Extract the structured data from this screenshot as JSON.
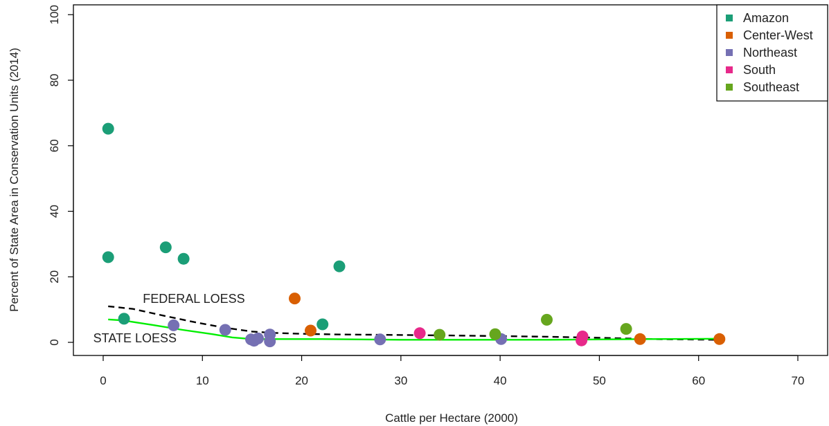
{
  "chart_data": {
    "type": "scatter",
    "xlabel": "Cattle per Hectare (2000)",
    "ylabel": "Percent of State Area in Conservation Units (2014)",
    "xlim": [
      -3,
      73
    ],
    "ylim": [
      -4,
      103
    ],
    "xticks": [
      0,
      10,
      20,
      30,
      40,
      50,
      60,
      70
    ],
    "yticks": [
      0,
      20,
      40,
      60,
      80,
      100
    ],
    "legend_position": "top-right",
    "series": [
      {
        "name": "Amazon",
        "color": "#1b9e77",
        "points": [
          [
            0.5,
            65.2
          ],
          [
            0.5,
            26.0
          ],
          [
            2.1,
            7.2
          ],
          [
            6.3,
            29.0
          ],
          [
            8.1,
            25.5
          ],
          [
            22.1,
            5.5
          ],
          [
            23.8,
            23.2
          ]
        ]
      },
      {
        "name": "Center-West",
        "color": "#d95f02",
        "points": [
          [
            19.3,
            13.4
          ],
          [
            20.9,
            3.6
          ],
          [
            54.1,
            1.0
          ],
          [
            62.1,
            1.0
          ]
        ]
      },
      {
        "name": "Northeast",
        "color": "#7570b3",
        "points": [
          [
            7.1,
            5.2
          ],
          [
            12.3,
            3.8
          ],
          [
            14.9,
            0.9
          ],
          [
            15.2,
            0.5
          ],
          [
            15.6,
            1.2
          ],
          [
            16.8,
            2.4
          ],
          [
            16.8,
            0.3
          ],
          [
            27.9,
            0.9
          ],
          [
            40.1,
            1.0
          ]
        ]
      },
      {
        "name": "South",
        "color": "#e7298a",
        "points": [
          [
            31.9,
            2.8
          ],
          [
            48.3,
            1.8
          ],
          [
            48.2,
            0.6
          ]
        ]
      },
      {
        "name": "Southeast",
        "color": "#66a61e",
        "points": [
          [
            33.9,
            2.3
          ],
          [
            39.5,
            2.5
          ],
          [
            44.7,
            6.9
          ],
          [
            52.7,
            4.1
          ]
        ]
      }
    ],
    "lines": [
      {
        "name": "FEDERAL LOESS",
        "color": "#000000",
        "dash": true,
        "points": [
          [
            0.5,
            11.0
          ],
          [
            3,
            10.2
          ],
          [
            6,
            8.2
          ],
          [
            9,
            6.3
          ],
          [
            12,
            4.6
          ],
          [
            15,
            3.3
          ],
          [
            17,
            2.9
          ],
          [
            20,
            2.6
          ],
          [
            24,
            2.4
          ],
          [
            28,
            2.3
          ],
          [
            35,
            2.1
          ],
          [
            40,
            1.9
          ],
          [
            45,
            1.7
          ],
          [
            50,
            1.4
          ],
          [
            55,
            1.0
          ],
          [
            62,
            0.8
          ]
        ]
      },
      {
        "name": "STATE LOESS",
        "color": "#00ee00",
        "dash": false,
        "points": [
          [
            0.5,
            7.0
          ],
          [
            2,
            6.7
          ],
          [
            5,
            5.3
          ],
          [
            8,
            3.8
          ],
          [
            11,
            2.5
          ],
          [
            13,
            1.5
          ],
          [
            15,
            1.0
          ],
          [
            18,
            1.0
          ],
          [
            22,
            1.0
          ],
          [
            26,
            0.9
          ],
          [
            30,
            0.8
          ],
          [
            35,
            0.8
          ],
          [
            40,
            0.8
          ],
          [
            45,
            0.8
          ],
          [
            50,
            0.9
          ],
          [
            55,
            1.0
          ],
          [
            62,
            1.1
          ]
        ]
      }
    ],
    "annotations": [
      {
        "text": "FEDERAL LOESS",
        "x": 4,
        "y": 12
      },
      {
        "text": "STATE LOESS",
        "x": -1,
        "y": 0
      }
    ]
  }
}
